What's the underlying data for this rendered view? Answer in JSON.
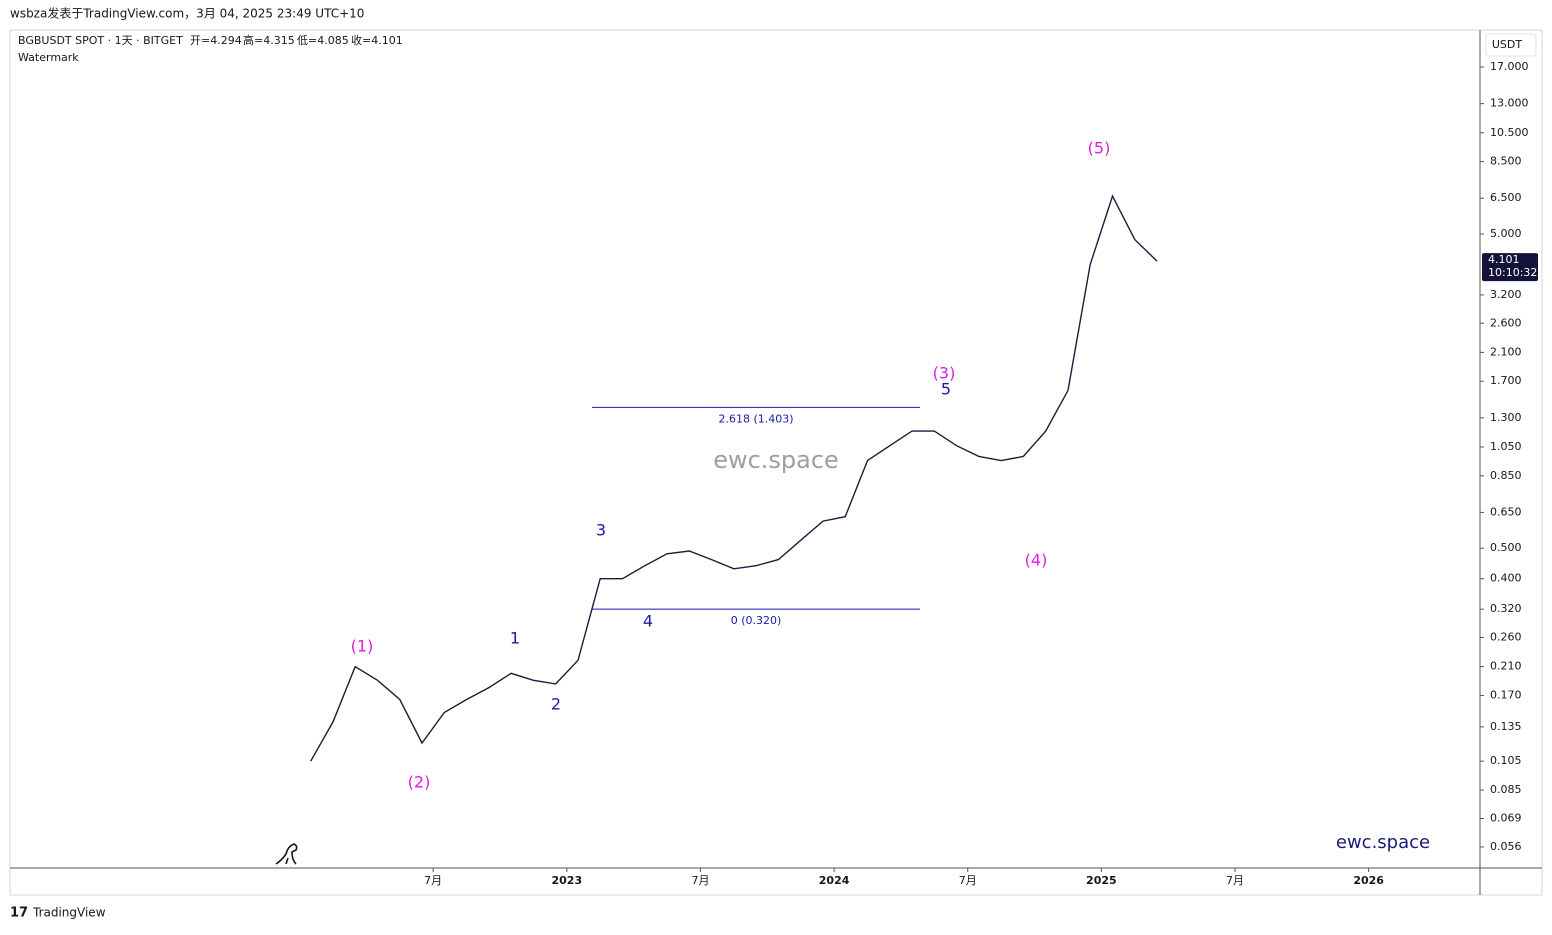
{
  "header": {
    "byline": "wsbza发表于TradingView.com，3月 04, 2025 23:49 UTC+10",
    "symbol": "BGBUSDT SPOT · 1天 · BITGET",
    "ohlc": [
      "开=4.294",
      "高=4.315",
      "低=4.085",
      "收=4.101"
    ],
    "watermark_label": "Watermark"
  },
  "chart_data": {
    "type": "line",
    "log_scale": true,
    "grid": false,
    "currency": "USDT",
    "countdown": "10:10:32",
    "watermark": "ewc.space",
    "brand": "ewc.space",
    "x": [
      "2022-01",
      "2022-02",
      "2022-03",
      "2022-04",
      "2022-05",
      "2022-06",
      "2022-07",
      "2022-08",
      "2022-09",
      "2022-10",
      "2022-11",
      "2022-12",
      "2023-01",
      "2023-02",
      "2023-03",
      "2023-04",
      "2023-05",
      "2023-06",
      "2023-07",
      "2023-08",
      "2023-09",
      "2023-10",
      "2023-11",
      "2023-12",
      "2024-01",
      "2024-02",
      "2024-03",
      "2024-04",
      "2024-05",
      "2024-06",
      "2024-07",
      "2024-08",
      "2024-09",
      "2024-10",
      "2024-11",
      "2024-12",
      "2025-01",
      "2025-02",
      "2025-03"
    ],
    "series": [
      {
        "name": "BGBUSDT",
        "color": "#1c1c3c",
        "values": [
          0.105,
          0.14,
          0.21,
          0.19,
          0.165,
          0.12,
          0.15,
          0.165,
          0.18,
          0.2,
          0.19,
          0.185,
          0.22,
          0.4,
          0.4,
          0.44,
          0.48,
          0.49,
          0.46,
          0.43,
          0.44,
          0.46,
          0.53,
          0.61,
          0.63,
          0.95,
          1.06,
          1.18,
          1.18,
          1.06,
          0.98,
          0.95,
          0.98,
          1.18,
          1.59,
          4.0,
          6.6,
          4.8,
          4.101
        ]
      }
    ],
    "xlim": [
      "2020-12",
      "2026-06"
    ],
    "xticks": [
      {
        "value": "2022-07",
        "label": "7月"
      },
      {
        "value": "2023-01",
        "label": "2023"
      },
      {
        "value": "2023-07",
        "label": "7月"
      },
      {
        "value": "2024-01",
        "label": "2024"
      },
      {
        "value": "2024-07",
        "label": "7月"
      },
      {
        "value": "2025-01",
        "label": "2025"
      },
      {
        "value": "2025-07",
        "label": "7月"
      },
      {
        "value": "2026-01",
        "label": "2026"
      }
    ],
    "ylim": [
      0.048,
      22.3
    ],
    "yticks": [
      {
        "value": 17,
        "label": "17.000"
      },
      {
        "value": 13,
        "label": "13.000"
      },
      {
        "value": 10.5,
        "label": "10.500"
      },
      {
        "value": 8.5,
        "label": "8.500"
      },
      {
        "value": 6.5,
        "label": "6.500"
      },
      {
        "value": 5,
        "label": "5.000"
      },
      {
        "value": 3.2,
        "label": "3.200"
      },
      {
        "value": 2.6,
        "label": "2.600"
      },
      {
        "value": 2.1,
        "label": "2.100"
      },
      {
        "value": 1.7,
        "label": "1.700"
      },
      {
        "value": 1.3,
        "label": "1.300"
      },
      {
        "value": 1.05,
        "label": "1.050"
      },
      {
        "value": 0.85,
        "label": "0.850"
      },
      {
        "value": 0.65,
        "label": "0.650"
      },
      {
        "value": 0.5,
        "label": "0.500"
      },
      {
        "value": 0.4,
        "label": "0.400"
      },
      {
        "value": 0.32,
        "label": "0.320"
      },
      {
        "value": 0.26,
        "label": "0.260"
      },
      {
        "value": 0.21,
        "label": "0.210"
      },
      {
        "value": 0.17,
        "label": "0.170"
      },
      {
        "value": 0.135,
        "label": "0.135"
      },
      {
        "value": 0.105,
        "label": "0.105"
      },
      {
        "value": 0.085,
        "label": "0.085"
      },
      {
        "value": 0.069,
        "label": "0.069"
      },
      {
        "value": 0.056,
        "label": "0.056"
      }
    ],
    "fib_levels": [
      {
        "value": 1.403,
        "label": "2.618 (1.403)"
      },
      {
        "value": 0.32,
        "label": "0 (0.320)"
      }
    ],
    "fib_color": "#1a1aaa",
    "annotations": [
      {
        "text": "(1)",
        "color": "#e01ee0"
      },
      {
        "text": "(2)",
        "color": "#e01ee0"
      },
      {
        "text": "(3)",
        "color": "#e01ee0"
      },
      {
        "text": "(4)",
        "color": "#e01ee0"
      },
      {
        "text": "(5)",
        "color": "#e01ee0"
      },
      {
        "text": "1",
        "color": "#1a1aaa"
      },
      {
        "text": "2",
        "color": "#1a1aaa"
      },
      {
        "text": "3",
        "color": "#1a1aaa"
      },
      {
        "text": "4",
        "color": "#1a1aaa"
      },
      {
        "text": "5",
        "color": "#1a1aaa"
      }
    ]
  },
  "footer": {
    "logo": "TradingView"
  }
}
